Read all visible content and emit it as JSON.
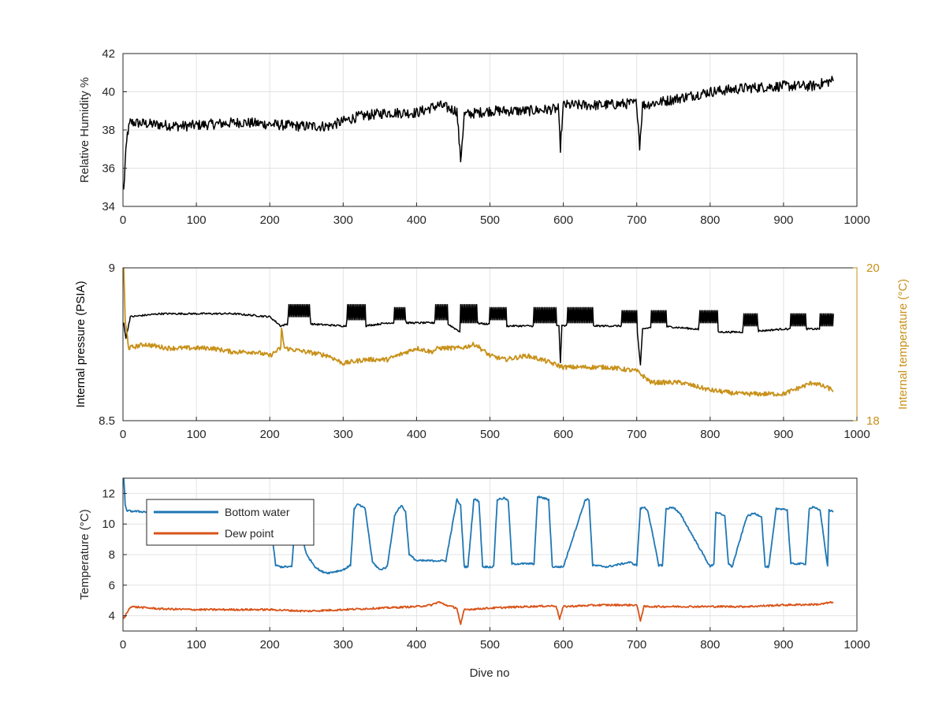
{
  "figure": {
    "background": "#ffffff",
    "axis_color": "#262626",
    "grid_color": "#e3e3e3"
  },
  "chart_data": [
    {
      "type": "line",
      "xlim": [
        0,
        1000
      ],
      "xticks": [
        0,
        100,
        200,
        300,
        400,
        500,
        600,
        700,
        800,
        900,
        1000
      ],
      "ylim": [
        34,
        42
      ],
      "yticks": [
        34,
        36,
        38,
        40,
        42
      ],
      "ylabel": "Relative Humidity %",
      "xlabel": "",
      "grid": true,
      "series": [
        {
          "color": "#000000",
          "noise": 0.55,
          "x": [
            1,
            3,
            6,
            10,
            40,
            80,
            120,
            160,
            200,
            240,
            280,
            320,
            360,
            400,
            430,
            455,
            460,
            465,
            500,
            550,
            593,
            596,
            600,
            650,
            700,
            704,
            708,
            750,
            800,
            850,
            900,
            940,
            968
          ],
          "y": [
            34.8,
            36.3,
            37.8,
            38.4,
            38.3,
            38.2,
            38.3,
            38.4,
            38.3,
            38.2,
            38.2,
            38.7,
            38.9,
            38.9,
            39.3,
            39.0,
            36.4,
            38.8,
            39.0,
            39.0,
            39.1,
            37.1,
            39.3,
            39.3,
            39.4,
            37.2,
            39.3,
            39.6,
            40.0,
            40.2,
            40.3,
            40.3,
            40.6
          ]
        }
      ]
    },
    {
      "type": "line",
      "xlim": [
        0,
        1000
      ],
      "xticks": [
        0,
        100,
        200,
        300,
        400,
        500,
        600,
        700,
        800,
        900,
        1000
      ],
      "ylim": [
        8.5,
        9
      ],
      "yticks": [
        8.5,
        9
      ],
      "ylabel": "Internal pressure (PSIA)",
      "y2lim": [
        18,
        20
      ],
      "y2ticks": [
        18,
        20
      ],
      "y2label": "Internal temperature (°C)",
      "y2color": "#c8911a",
      "grid": true,
      "series": [
        {
          "axis": "left",
          "color": "#000000",
          "x": [
            1,
            4,
            10,
            50,
            100,
            150,
            200,
            215,
            230,
            300,
            330,
            360,
            400,
            440,
            460,
            480,
            520,
            560,
            594,
            596,
            598,
            650,
            700,
            705,
            708,
            730,
            780,
            800,
            850,
            900,
            950,
            968
          ],
          "y": [
            8.82,
            8.77,
            8.84,
            8.85,
            8.85,
            8.85,
            8.84,
            8.81,
            8.82,
            8.81,
            8.81,
            8.82,
            8.82,
            8.82,
            8.79,
            8.82,
            8.81,
            8.81,
            8.81,
            8.69,
            8.81,
            8.81,
            8.81,
            8.68,
            8.8,
            8.81,
            8.8,
            8.79,
            8.79,
            8.8,
            8.8,
            8.8
          ],
          "bursts": [
            [
              225,
              255,
              8.84,
              8.88
            ],
            [
              305,
              330,
              8.83,
              8.88
            ],
            [
              370,
              385,
              8.83,
              8.87
            ],
            [
              425,
              442,
              8.83,
              8.88
            ],
            [
              460,
              482,
              8.82,
              8.88
            ],
            [
              500,
              522,
              8.83,
              8.87
            ],
            [
              560,
              590,
              8.82,
              8.87
            ],
            [
              605,
              640,
              8.82,
              8.87
            ],
            [
              680,
              700,
              8.82,
              8.86
            ],
            [
              720,
              740,
              8.82,
              8.86
            ],
            [
              785,
              810,
              8.82,
              8.86
            ],
            [
              845,
              865,
              8.81,
              8.85
            ],
            [
              910,
              930,
              8.81,
              8.85
            ],
            [
              950,
              968,
              8.81,
              8.85
            ]
          ]
        },
        {
          "axis": "right",
          "color": "#c8911a",
          "noise": 0.06,
          "x": [
            1,
            3,
            8,
            30,
            60,
            90,
            120,
            150,
            180,
            200,
            215,
            216,
            220,
            250,
            280,
            300,
            330,
            360,
            400,
            420,
            430,
            460,
            480,
            500,
            520,
            550,
            570,
            600,
            630,
            660,
            700,
            720,
            760,
            800,
            840,
            880,
            900,
            940,
            968
          ],
          "y": [
            20.0,
            19.3,
            18.95,
            19.0,
            18.95,
            18.95,
            18.95,
            18.9,
            18.9,
            18.85,
            18.95,
            19.2,
            18.95,
            18.9,
            18.85,
            18.75,
            18.8,
            18.8,
            18.95,
            18.9,
            18.95,
            18.95,
            19.0,
            18.85,
            18.8,
            18.85,
            18.8,
            18.7,
            18.7,
            18.7,
            18.65,
            18.5,
            18.5,
            18.4,
            18.35,
            18.35,
            18.35,
            18.5,
            18.4
          ]
        }
      ]
    },
    {
      "type": "line",
      "xlim": [
        0,
        1000
      ],
      "xticks": [
        0,
        100,
        200,
        300,
        400,
        500,
        600,
        700,
        800,
        900,
        1000
      ],
      "ylim": [
        3,
        13
      ],
      "yticks": [
        4,
        6,
        8,
        10,
        12
      ],
      "ylabel": "Temperature (°C)",
      "xlabel": "Dive no",
      "grid": true,
      "legend": "upper-left",
      "series": [
        {
          "name": "Bottom water",
          "color": "#1f77b4",
          "noise": 0.12,
          "x": [
            1,
            2,
            3,
            5,
            8,
            30,
            60,
            100,
            200,
            205,
            208,
            215,
            230,
            235,
            240,
            245,
            250,
            262,
            270,
            280,
            290,
            300,
            310,
            315,
            320,
            330,
            340,
            350,
            360,
            370,
            375,
            380,
            385,
            390,
            400,
            420,
            440,
            455,
            460,
            465,
            470,
            478,
            480,
            485,
            490,
            505,
            510,
            520,
            525,
            530,
            560,
            565,
            580,
            585,
            600,
            630,
            635,
            640,
            660,
            670,
            680,
            690,
            700,
            705,
            710,
            715,
            730,
            735,
            740,
            750,
            760,
            800,
            805,
            808,
            820,
            825,
            830,
            850,
            860,
            870,
            875,
            880,
            890,
            900,
            905,
            910,
            930,
            935,
            940,
            950,
            960,
            962,
            968
          ],
          "y": [
            13,
            12.2,
            11.2,
            10.9,
            10.85,
            10.8,
            10.75,
            10.7,
            10.7,
            8.5,
            7.3,
            7.2,
            7.2,
            10.4,
            10.2,
            9.0,
            8.0,
            7.2,
            6.9,
            6.8,
            6.9,
            7.0,
            7.3,
            11.0,
            11.3,
            11.0,
            7.5,
            7.0,
            7.2,
            10.5,
            11.0,
            11.2,
            10.8,
            8.0,
            7.6,
            7.6,
            7.6,
            11.6,
            11.2,
            7.2,
            7.2,
            11.6,
            11.6,
            11.5,
            7.2,
            7.2,
            11.6,
            11.7,
            11.5,
            7.4,
            7.4,
            11.8,
            11.6,
            7.2,
            7.2,
            11.6,
            11.6,
            7.3,
            7.2,
            7.3,
            7.4,
            7.5,
            7.3,
            11.0,
            11.1,
            10.9,
            7.3,
            7.3,
            11.0,
            11.1,
            10.6,
            7.2,
            7.4,
            10.8,
            10.5,
            7.4,
            7.2,
            10.5,
            10.7,
            10.5,
            7.2,
            7.2,
            11.0,
            11.0,
            10.9,
            7.4,
            7.4,
            11.0,
            11.1,
            10.9,
            7.2,
            10.9,
            10.8
          ]
        },
        {
          "name": "Dew point",
          "color": "#d95319",
          "noise": 0.12,
          "x": [
            1,
            10,
            50,
            100,
            150,
            200,
            250,
            300,
            350,
            400,
            420,
            430,
            440,
            455,
            460,
            465,
            500,
            550,
            590,
            595,
            600,
            650,
            700,
            705,
            710,
            750,
            800,
            850,
            900,
            950,
            968
          ],
          "y": [
            3.8,
            4.6,
            4.45,
            4.4,
            4.4,
            4.4,
            4.3,
            4.4,
            4.5,
            4.6,
            4.7,
            4.9,
            4.7,
            4.5,
            3.4,
            4.4,
            4.5,
            4.6,
            4.65,
            3.8,
            4.6,
            4.7,
            4.7,
            3.7,
            4.6,
            4.6,
            4.6,
            4.6,
            4.7,
            4.75,
            4.9
          ]
        }
      ]
    }
  ]
}
